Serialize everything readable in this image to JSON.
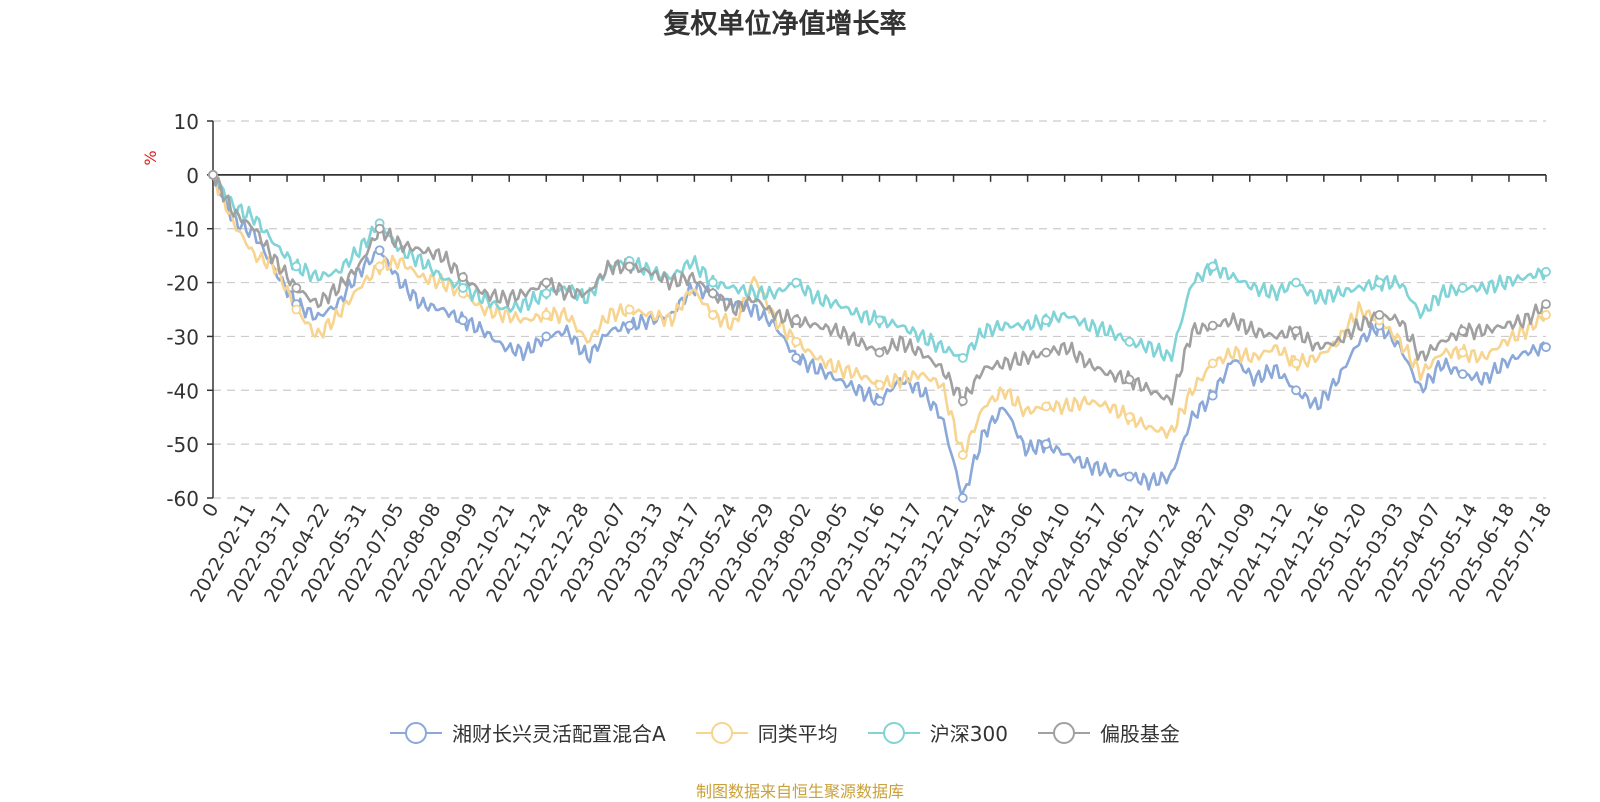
{
  "chart_data": {
    "type": "line",
    "title": "复权单位净值增长率",
    "ylabel": "%",
    "ylim": [
      -60,
      10
    ],
    "y_ticks": [
      10,
      0,
      -10,
      -20,
      -30,
      -40,
      -50,
      -60
    ],
    "x_tick_labels": [
      "0",
      "2022-02-11",
      "2022-03-17",
      "2022-04-22",
      "2022-05-31",
      "2022-07-05",
      "2022-08-08",
      "2022-09-09",
      "2022-10-21",
      "2022-11-24",
      "2022-12-28",
      "2023-02-07",
      "2023-03-13",
      "2023-04-17",
      "2023-05-24",
      "2023-06-29",
      "2023-08-02",
      "2023-09-05",
      "2023-10-16",
      "2023-11-17",
      "2023-12-21",
      "2024-01-24",
      "2024-03-06",
      "2024-04-10",
      "2024-05-17",
      "2024-06-21",
      "2024-07-24",
      "2024-08-27",
      "2024-10-09",
      "2024-11-12",
      "2024-12-16",
      "2025-01-20",
      "2025-03-03",
      "2025-04-07",
      "2025-05-14",
      "2025-06-18",
      "2025-07-18"
    ],
    "grid": true,
    "legend_position": "bottom",
    "series": [
      {
        "name": "湘财长兴灵活配置混合A",
        "color": "#8aa8d8",
        "values": [
          0,
          -8.5,
          -11,
          -18,
          -24,
          -26.5,
          -24,
          -18,
          -14,
          -20,
          -24,
          -25,
          -27,
          -29,
          -32,
          -33,
          -30,
          -29,
          -34,
          -29,
          -28,
          -27,
          -26,
          -21,
          -22,
          -24,
          -25,
          -28,
          -34,
          -36,
          -38,
          -40,
          -42,
          -38,
          -40,
          -45,
          -60,
          -48,
          -43,
          -51,
          -50,
          -52,
          -54,
          -55,
          -56,
          -57,
          -56,
          -45,
          -41,
          -34,
          -38,
          -36,
          -40,
          -43,
          -38,
          -31,
          -28,
          -32,
          -40,
          -35,
          -37,
          -38,
          -35,
          -33,
          -32
        ]
      },
      {
        "name": "同类平均",
        "color": "#f7d48f",
        "values": [
          0,
          -9,
          -15,
          -17,
          -25,
          -30,
          -26,
          -21,
          -17,
          -16,
          -19,
          -20,
          -22,
          -25,
          -26,
          -27,
          -26,
          -26,
          -31,
          -26,
          -25,
          -26,
          -27,
          -21,
          -26,
          -28,
          -19,
          -27,
          -31,
          -34,
          -36,
          -37,
          -39,
          -38,
          -37,
          -39,
          -52,
          -43,
          -40,
          -44,
          -43,
          -43,
          -42,
          -43,
          -45,
          -47,
          -48,
          -40,
          -35,
          -33,
          -34,
          -32,
          -35,
          -34,
          -31,
          -25,
          -27,
          -31,
          -37,
          -33,
          -33,
          -34,
          -31,
          -29,
          -26
        ]
      },
      {
        "name": "沪深300",
        "color": "#80d3d6",
        "values": [
          0,
          -6,
          -8,
          -13,
          -17,
          -19,
          -18,
          -14,
          -9,
          -14,
          -16,
          -19,
          -21,
          -23,
          -25,
          -24,
          -22,
          -21,
          -23,
          -17,
          -16,
          -18,
          -19,
          -16,
          -20,
          -21,
          -22,
          -22,
          -20,
          -23,
          -24,
          -26,
          -27,
          -28,
          -30,
          -32,
          -34,
          -29,
          -28,
          -28,
          -27,
          -26,
          -28,
          -29,
          -31,
          -32,
          -34,
          -20,
          -17,
          -19,
          -21,
          -22,
          -20,
          -23,
          -22,
          -21,
          -20,
          -20,
          -26,
          -22,
          -21,
          -21,
          -20,
          -19,
          -18
        ]
      },
      {
        "name": "偏股基金",
        "color": "#a0a0a0",
        "values": [
          0,
          -7,
          -10,
          -16,
          -21,
          -24,
          -21,
          -17,
          -10,
          -13,
          -14,
          -15,
          -19,
          -22,
          -23,
          -22,
          -20,
          -22,
          -22,
          -17,
          -17,
          -18,
          -20,
          -19,
          -22,
          -25,
          -23,
          -26,
          -27,
          -28,
          -29,
          -31,
          -33,
          -31,
          -33,
          -36,
          -42,
          -36,
          -35,
          -34,
          -33,
          -32,
          -35,
          -37,
          -38,
          -40,
          -42,
          -29,
          -28,
          -27,
          -29,
          -30,
          -29,
          -32,
          -31,
          -28,
          -26,
          -27,
          -34,
          -31,
          -29,
          -29,
          -28,
          -27,
          -24
        ]
      }
    ]
  },
  "source_note": "制图数据来自恒生聚源数据库"
}
